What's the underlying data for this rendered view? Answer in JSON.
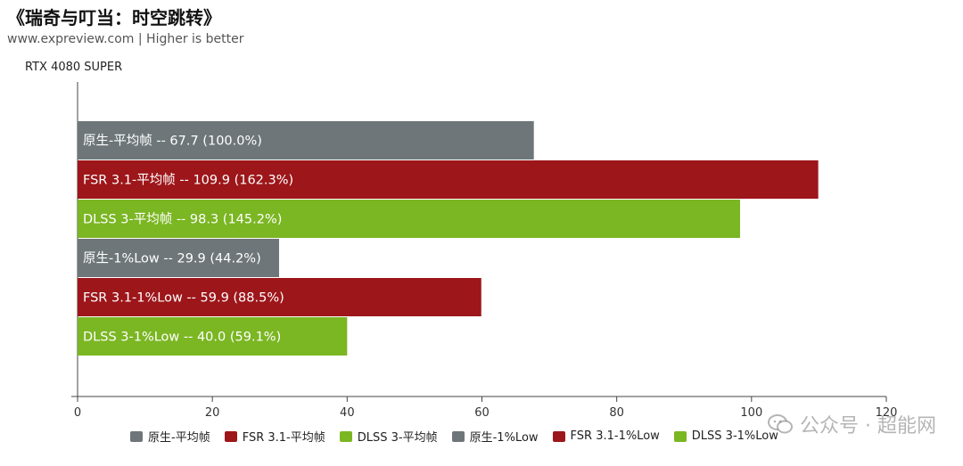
{
  "header": {
    "title": "《瑞奇与叮当：时空跳转》",
    "subtitle": "www.expreview.com | Higher is better",
    "group_label": "RTX 4080 SUPER"
  },
  "colors": {
    "native": "#6e7679",
    "fsr": "#9d161a",
    "dlss": "#7bb623"
  },
  "chart_data": {
    "type": "bar",
    "orientation": "horizontal",
    "group": "RTX 4080 SUPER",
    "xlim": [
      0,
      120
    ],
    "xticks": [
      0,
      20,
      40,
      60,
      80,
      100,
      120
    ],
    "grid": false,
    "legend_position": "bottom",
    "series": [
      {
        "name": "原生-平均帧",
        "value": 67.7,
        "label": "原生-平均帧  --  67.7 (100.0%)",
        "color_key": "native"
      },
      {
        "name": "FSR 3.1-平均帧",
        "value": 109.9,
        "label": "FSR 3.1-平均帧  --  109.9 (162.3%)",
        "color_key": "fsr"
      },
      {
        "name": "DLSS 3-平均帧",
        "value": 98.3,
        "label": "DLSS 3-平均帧  --  98.3 (145.2%)",
        "color_key": "dlss"
      },
      {
        "name": "原生-1%Low",
        "value": 29.9,
        "label": "原生-1%Low  --  29.9 (44.2%)",
        "color_key": "native"
      },
      {
        "name": "FSR 3.1-1%Low",
        "value": 59.9,
        "label": "FSR 3.1-1%Low  --  59.9 (88.5%)",
        "color_key": "fsr"
      },
      {
        "name": "DLSS 3-1%Low",
        "value": 40.0,
        "label": "DLSS 3-1%Low  --  40.0 (59.1%)",
        "color_key": "dlss"
      }
    ]
  },
  "watermark": {
    "text": "公众号 · 超能网",
    "icon": "wechat-icon"
  }
}
